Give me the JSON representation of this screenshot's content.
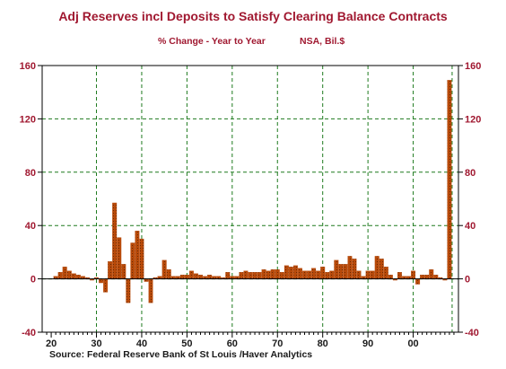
{
  "colors": {
    "title": "#a01830",
    "bar_fill": "#b84a0a",
    "grid": "#1e7a1e",
    "axis": "#000000"
  },
  "header": {
    "title": "Adj Reserves incl Deposits to Satisfy Clearing Balance Contracts",
    "subtitle_left": "% Change - Year to Year",
    "subtitle_right": "NSA, Bil.$"
  },
  "footer": {
    "source": "Source:  Federal Reserve Bank of St Louis /Haver Analytics"
  },
  "chart_data": {
    "type": "bar",
    "title": "Adj Reserves incl Deposits to Satisfy Clearing Balance Contracts",
    "subtitle": "% Change - Year to Year   NSA, Bil.$",
    "xlabel": "",
    "ylabel": "",
    "ylim": [
      -40,
      160
    ],
    "xlim": [
      1918,
      2010
    ],
    "y_ticks": [
      -40,
      0,
      40,
      80,
      120,
      160
    ],
    "x_ticks": [
      1920,
      1930,
      1940,
      1950,
      1960,
      1970,
      1980,
      1990,
      2000
    ],
    "x_tick_labels": [
      "20",
      "30",
      "40",
      "50",
      "60",
      "70",
      "80",
      "90",
      "00"
    ],
    "grid": true,
    "y_axis_both_sides": true,
    "x": [
      1921,
      1922,
      1923,
      1924,
      1925,
      1926,
      1927,
      1928,
      1929,
      1930,
      1931,
      1932,
      1933,
      1934,
      1935,
      1936,
      1937,
      1938,
      1939,
      1940,
      1941,
      1942,
      1943,
      1944,
      1945,
      1946,
      1947,
      1948,
      1949,
      1950,
      1951,
      1952,
      1953,
      1954,
      1955,
      1956,
      1957,
      1958,
      1959,
      1960,
      1961,
      1962,
      1963,
      1964,
      1965,
      1966,
      1967,
      1968,
      1969,
      1970,
      1971,
      1972,
      1973,
      1974,
      1975,
      1976,
      1977,
      1978,
      1979,
      1980,
      1981,
      1982,
      1983,
      1984,
      1985,
      1986,
      1987,
      1988,
      1989,
      1990,
      1991,
      1992,
      1993,
      1994,
      1995,
      1996,
      1997,
      1998,
      1999,
      2000,
      2001,
      2002,
      2003,
      2004,
      2005,
      2006,
      2007,
      2008
    ],
    "values": [
      2,
      5,
      9,
      6,
      4,
      3,
      2,
      1,
      -1,
      1,
      -3,
      -10,
      13,
      57,
      31,
      11,
      -18,
      27,
      36,
      30,
      -2,
      -18,
      1,
      2,
      14,
      7,
      2,
      2,
      3,
      3,
      6,
      4,
      3,
      2,
      3,
      2,
      2,
      1,
      5,
      2,
      2,
      5,
      6,
      5,
      5,
      5,
      7,
      6,
      7,
      7,
      5,
      10,
      9,
      10,
      8,
      6,
      6,
      8,
      6,
      9,
      5,
      6,
      14,
      11,
      11,
      17,
      15,
      6,
      2,
      6,
      6,
      17,
      15,
      9,
      3,
      -1,
      5,
      2,
      2,
      6,
      -4,
      3,
      3,
      7,
      3,
      1,
      -1,
      149
    ]
  }
}
